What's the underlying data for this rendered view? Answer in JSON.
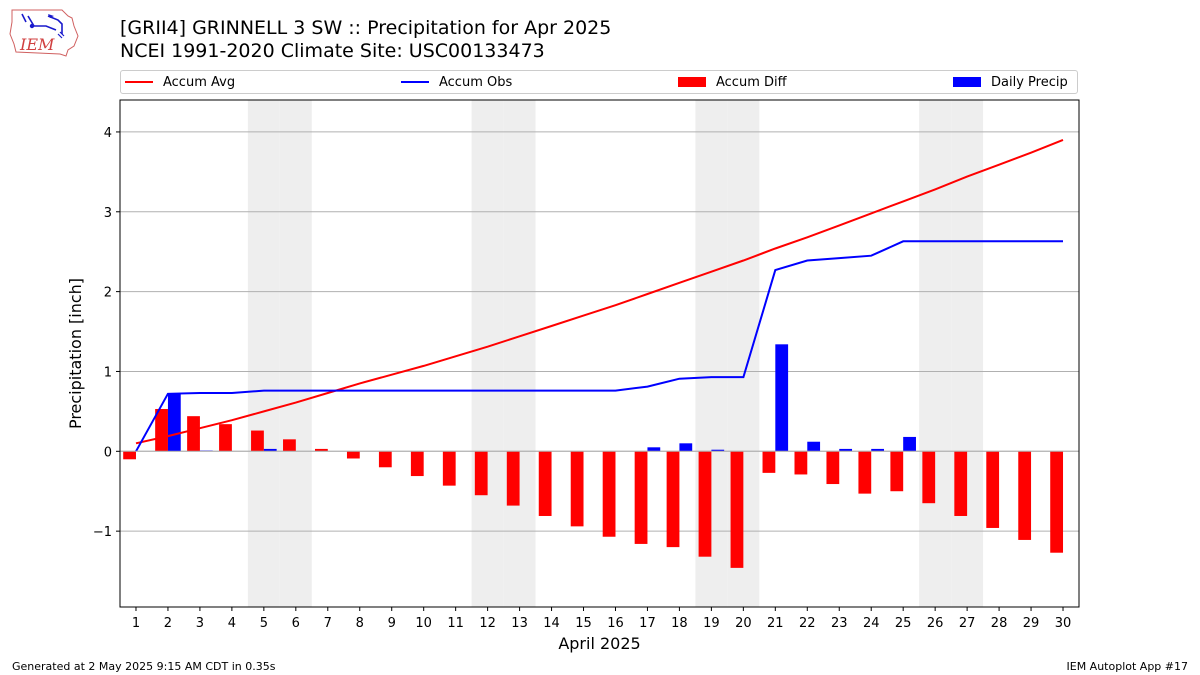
{
  "header": {
    "title_line1": "[GRII4] GRINNELL 3 SW :: Precipitation for Apr 2025",
    "title_line2": "NCEI 1991-2020 Climate Site: USC00133473",
    "logo_text": "IEM"
  },
  "legend": {
    "accum_avg": "Accum Avg",
    "accum_obs": "Accum Obs",
    "accum_diff": "Accum Diff",
    "daily_precip": "Daily Precip"
  },
  "colors": {
    "avg": "#ff0000",
    "obs": "#0000ff",
    "diff": "#ff0000",
    "daily": "#0000ff",
    "weekend": "#eeeeee",
    "grid": "#b0b0b0"
  },
  "footer": {
    "left": "Generated at 2 May 2025 9:15 AM CDT in 0.35s",
    "right": "IEM Autoplot App #17"
  },
  "chart_data": {
    "type": "bar",
    "xlabel": "April 2025",
    "ylabel": "Precipitation [inch]",
    "xlim": [
      0.5,
      30.5
    ],
    "ylim": [
      -1.95,
      4.4
    ],
    "yticks": [
      -1,
      0,
      1,
      2,
      3,
      4
    ],
    "ytick_labels": [
      "−1",
      "0",
      "1",
      "2",
      "3",
      "4"
    ],
    "grid": "y",
    "legend_position": "top",
    "shaded_days": [
      5,
      6,
      12,
      13,
      19,
      20,
      26,
      27
    ],
    "x": [
      1,
      2,
      3,
      4,
      5,
      6,
      7,
      8,
      9,
      10,
      11,
      12,
      13,
      14,
      15,
      16,
      17,
      18,
      19,
      20,
      21,
      22,
      23,
      24,
      25,
      26,
      27,
      28,
      29,
      30
    ],
    "series": [
      {
        "name": "Accum Avg",
        "kind": "line",
        "values": [
          0.1,
          0.19,
          0.29,
          0.39,
          0.5,
          0.61,
          0.73,
          0.85,
          0.96,
          1.07,
          1.19,
          1.31,
          1.44,
          1.57,
          1.7,
          1.83,
          1.97,
          2.11,
          2.25,
          2.39,
          2.54,
          2.68,
          2.83,
          2.98,
          3.13,
          3.28,
          3.44,
          3.59,
          3.74,
          3.9
        ]
      },
      {
        "name": "Accum Obs",
        "kind": "line",
        "values": [
          0.0,
          0.72,
          0.73,
          0.73,
          0.76,
          0.76,
          0.76,
          0.76,
          0.76,
          0.76,
          0.76,
          0.76,
          0.76,
          0.76,
          0.76,
          0.76,
          0.81,
          0.91,
          0.93,
          0.93,
          2.27,
          2.39,
          2.42,
          2.45,
          2.63,
          2.63,
          2.63,
          2.63,
          2.63,
          2.63
        ]
      },
      {
        "name": "Accum Diff",
        "kind": "bar",
        "values": [
          -0.1,
          0.53,
          0.44,
          0.34,
          0.26,
          0.15,
          0.03,
          -0.09,
          -0.2,
          -0.31,
          -0.43,
          -0.55,
          -0.68,
          -0.81,
          -0.94,
          -1.07,
          -1.16,
          -1.2,
          -1.32,
          -1.46,
          -0.27,
          -0.29,
          -0.41,
          -0.53,
          -0.5,
          -0.65,
          -0.81,
          -0.96,
          -1.11,
          -1.27
        ]
      },
      {
        "name": "Daily Precip",
        "kind": "bar",
        "values": [
          0.0,
          0.72,
          0.01,
          0.0,
          0.03,
          0.0,
          0.0,
          0.0,
          0.0,
          0.0,
          0.0,
          0.0,
          0.0,
          0.0,
          0.0,
          0.0,
          0.05,
          0.1,
          0.02,
          0.0,
          1.34,
          0.12,
          0.03,
          0.03,
          0.18,
          0.0,
          0.0,
          0.0,
          0.0,
          0.0
        ]
      }
    ]
  }
}
